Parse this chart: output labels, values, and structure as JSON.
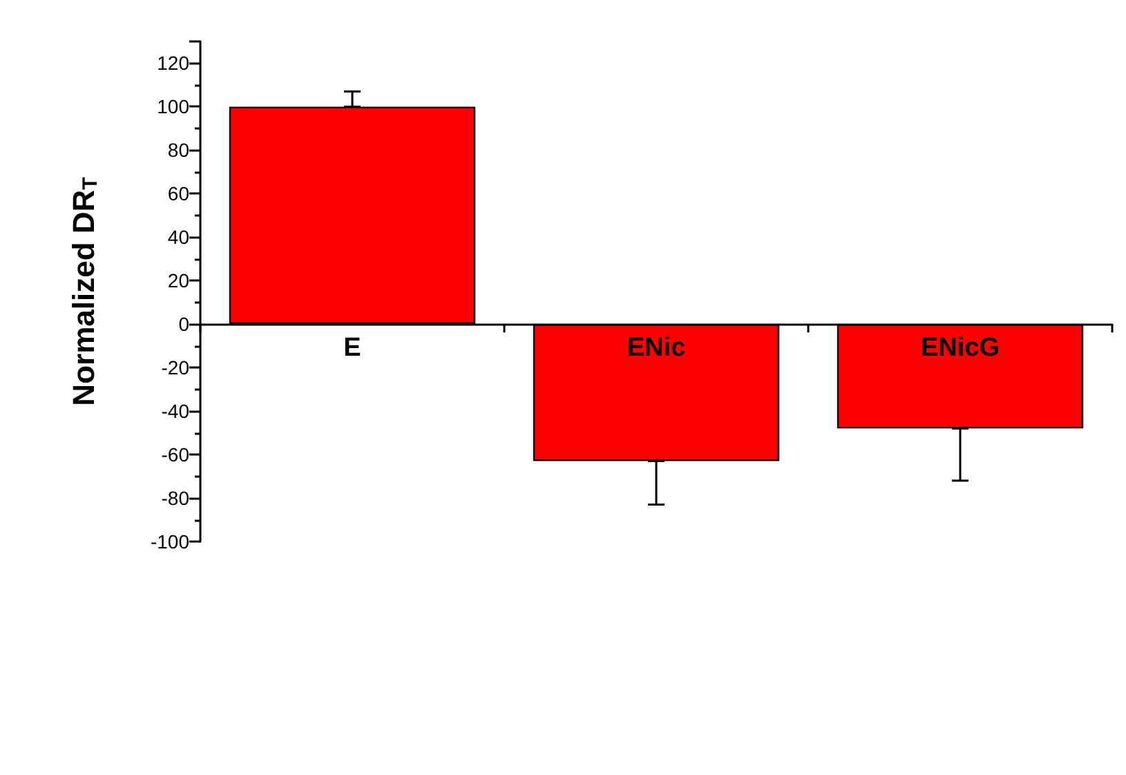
{
  "chart_data": {
    "type": "bar",
    "categories": [
      "E",
      "ENic",
      "ENicG"
    ],
    "series": [
      {
        "color": "#ff0000",
        "values": [
          100,
          -63,
          -48
        ],
        "errors": [
          [
            100,
            107
          ],
          [
            -83,
            -63
          ],
          [
            -72,
            -48
          ]
        ]
      }
    ],
    "ylabel": "Normalized DR$_{T}$",
    "ylim": [
      -100,
      130
    ],
    "yticks": [
      -100,
      -80,
      -60,
      -40,
      -20,
      0,
      20,
      40,
      60,
      80,
      100,
      120
    ]
  }
}
